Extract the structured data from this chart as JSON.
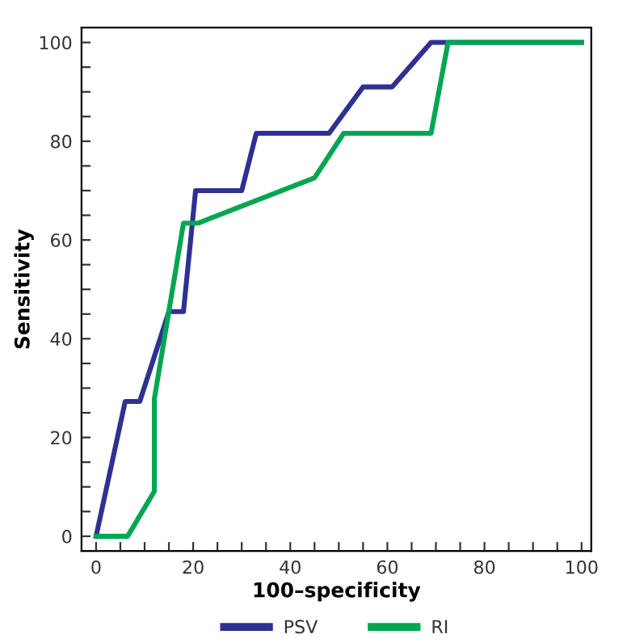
{
  "chart_data": {
    "type": "line",
    "xlabel": "100–specificity",
    "ylabel": "Sensitivity",
    "xlim": [
      -3,
      102
    ],
    "ylim": [
      -3,
      103
    ],
    "xticks": [
      0,
      {
        "value": 5,
        "label": null
      },
      {
        "value": 10,
        "label": null
      },
      {
        "value": 15,
        "label": null
      },
      20,
      {
        "value": 25,
        "label": null
      },
      {
        "value": 30,
        "label": null
      },
      {
        "value": 35,
        "label": null
      },
      40,
      {
        "value": 45,
        "label": null
      },
      {
        "value": 50,
        "label": null
      },
      {
        "value": 55,
        "label": null
      },
      60,
      {
        "value": 65,
        "label": null
      },
      {
        "value": 70,
        "label": null
      },
      {
        "value": 75,
        "label": null
      },
      80,
      {
        "value": 85,
        "label": null
      },
      {
        "value": 90,
        "label": null
      },
      {
        "value": 95,
        "label": null
      },
      100
    ],
    "yticks": [
      0,
      {
        "value": 5,
        "label": null
      },
      {
        "value": 10,
        "label": null
      },
      {
        "value": 15,
        "label": null
      },
      20,
      {
        "value": 25,
        "label": null
      },
      {
        "value": 30,
        "label": null
      },
      {
        "value": 35,
        "label": null
      },
      40,
      {
        "value": 45,
        "label": null
      },
      {
        "value": 50,
        "label": null
      },
      {
        "value": 55,
        "label": null
      },
      60,
      {
        "value": 65,
        "label": null
      },
      {
        "value": 70,
        "label": null
      },
      {
        "value": 75,
        "label": null
      },
      80,
      {
        "value": 85,
        "label": null
      },
      {
        "value": 90,
        "label": null
      },
      {
        "value": 95,
        "label": null
      },
      100
    ],
    "grid": false,
    "legend": "bottom",
    "marker": "none",
    "line_style": "solid",
    "series": [
      {
        "name": "PSV",
        "color": "#2e3192",
        "x": [
          0,
          6,
          9,
          15,
          18,
          20.5,
          30,
          33,
          48,
          55,
          61,
          69,
          72,
          100
        ],
        "values": [
          0,
          27.3,
          27.3,
          45.5,
          45.5,
          70,
          70,
          81.6,
          81.6,
          91,
          91,
          100,
          100,
          100
        ]
      },
      {
        "name": "RI",
        "color": "#00a651",
        "x": [
          0,
          6.5,
          12,
          12,
          18,
          21,
          45,
          51,
          69,
          72.5,
          100
        ],
        "values": [
          0,
          0,
          9.1,
          27.8,
          63.4,
          63.4,
          72.6,
          81.6,
          81.6,
          100,
          100
        ]
      }
    ]
  }
}
